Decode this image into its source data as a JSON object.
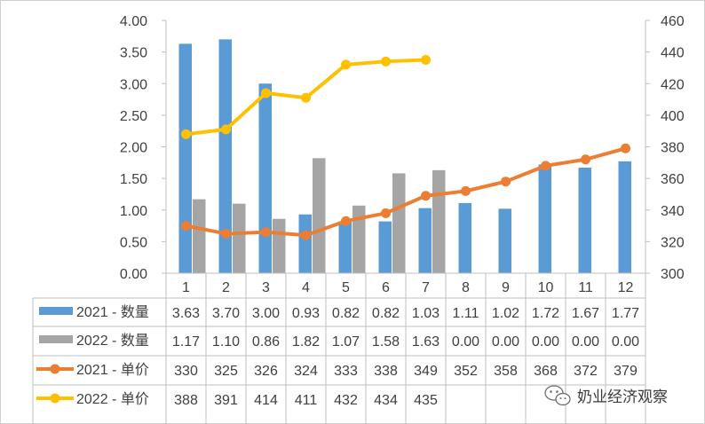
{
  "chart_data": {
    "type": "bar",
    "categories": [
      "1",
      "2",
      "3",
      "4",
      "5",
      "6",
      "7",
      "8",
      "9",
      "10",
      "11",
      "12"
    ],
    "y_left": {
      "min": 0,
      "max": 4,
      "step": 0.5,
      "tick_labels": [
        "0.00",
        "0.50",
        "1.00",
        "1.50",
        "2.00",
        "2.50",
        "3.00",
        "3.50",
        "4.00"
      ]
    },
    "y_right": {
      "min": 300,
      "max": 460,
      "step": 20,
      "tick_labels": [
        "300",
        "320",
        "340",
        "360",
        "380",
        "400",
        "420",
        "440",
        "460"
      ]
    },
    "series": [
      {
        "name": "2021 - 数量",
        "kind": "bar",
        "axis": "left",
        "color": "#5B9BD5",
        "values": [
          3.63,
          3.7,
          3.0,
          0.93,
          0.82,
          0.82,
          1.03,
          1.11,
          1.02,
          1.72,
          1.67,
          1.77
        ],
        "labels": [
          "3.63",
          "3.70",
          "3.00",
          "0.93",
          "0.82",
          "0.82",
          "1.03",
          "1.11",
          "1.02",
          "1.72",
          "1.67",
          "1.77"
        ]
      },
      {
        "name": "2022 - 数量",
        "kind": "bar",
        "axis": "left",
        "color": "#A5A5A5",
        "values": [
          1.17,
          1.1,
          0.86,
          1.82,
          1.07,
          1.58,
          1.63,
          0,
          0,
          0,
          0,
          0
        ],
        "labels": [
          "1.17",
          "1.10",
          "0.86",
          "1.82",
          "1.07",
          "1.58",
          "1.63",
          "0.00",
          "0.00",
          "0.00",
          "0.00",
          "0.00"
        ]
      },
      {
        "name": "2021 - 单价",
        "kind": "line",
        "axis": "right",
        "color": "#ED7D31",
        "values": [
          330,
          325,
          326,
          324,
          333,
          338,
          349,
          352,
          358,
          368,
          372,
          379
        ],
        "labels": [
          "330",
          "325",
          "326",
          "324",
          "333",
          "338",
          "349",
          "352",
          "358",
          "368",
          "372",
          "379"
        ]
      },
      {
        "name": "2022 - 单价",
        "kind": "line",
        "axis": "right",
        "color": "#FFC000",
        "values": [
          388,
          391,
          414,
          411,
          432,
          434,
          435,
          null,
          null,
          null,
          null,
          null
        ],
        "labels": [
          "388",
          "391",
          "414",
          "411",
          "432",
          "434",
          "435",
          "",
          "",
          "",
          "",
          ""
        ]
      }
    ],
    "grid": false,
    "legend": "data-table-left"
  },
  "watermark": {
    "text": "奶业经济观察",
    "icon": "wechat-icon"
  }
}
